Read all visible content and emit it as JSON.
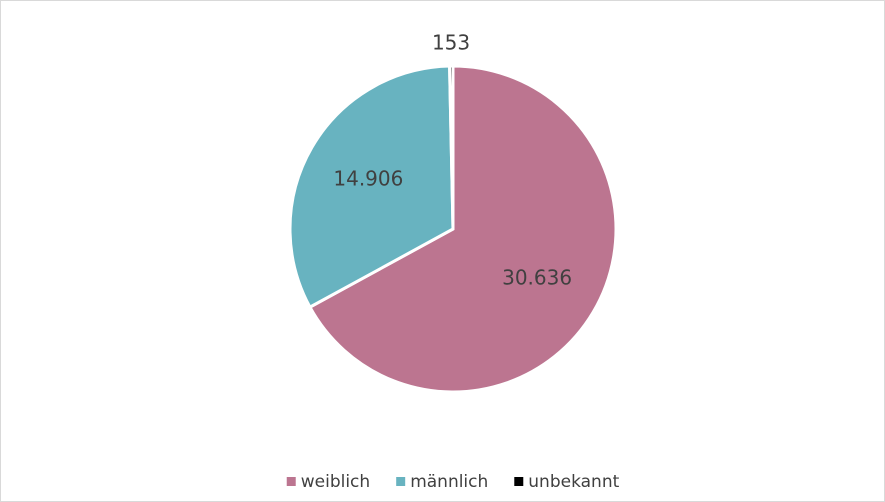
{
  "chart_data": {
    "type": "pie",
    "categories": [
      "weiblich",
      "männlich",
      "unbekannt"
    ],
    "values": [
      30636,
      14906,
      153
    ],
    "value_labels": [
      "30.636",
      "14.906",
      "153"
    ],
    "colors": [
      "#bc7590",
      "#68b3c0",
      "#000000"
    ],
    "legend": "bottom"
  }
}
